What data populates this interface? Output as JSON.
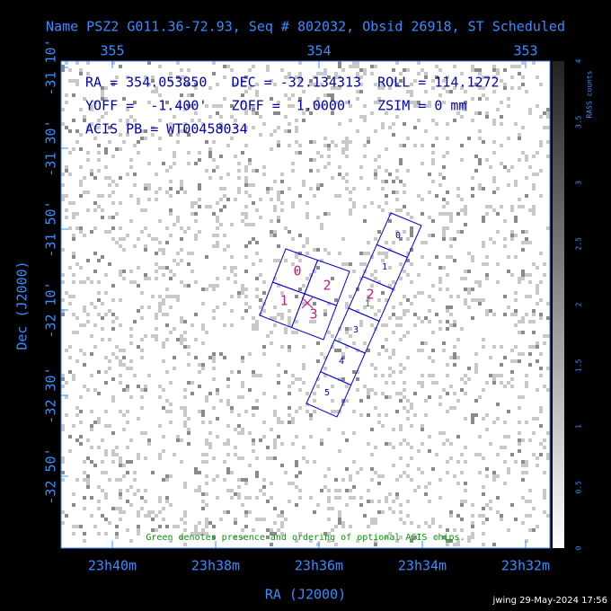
{
  "header": {
    "title": "Name PSZ2 G011.36-72.93, Seq # 802032, Obsid 26918, ST Scheduled"
  },
  "axes": {
    "top_labels": [
      "355",
      "354",
      "353"
    ],
    "left_labels": [
      "-31 10'",
      "-31 30'",
      "-31 50'",
      "-32 10'",
      "-32 30'",
      "-32 50'"
    ],
    "bottom_labels": [
      "23h40m",
      "23h38m",
      "23h36m",
      "23h34m",
      "23h32m"
    ],
    "x_title": "RA (J2000)",
    "y_title": "Dec (J2000)"
  },
  "info": [
    "RA = 354.053850   DEC = -32.134313  ROLL = 114.1272",
    "YOFF =  -1.400'   ZOFF =  1.0000'   ZSIM = 0 mm",
    "ACIS PB = WT00458034"
  ],
  "chips": {
    "acis_i": [
      "0",
      "2",
      "1",
      "3"
    ],
    "acis_s": [
      "0",
      "1",
      "2",
      "3",
      "4",
      "5"
    ],
    "optional": "1"
  },
  "colorbar": {
    "title": "RASS counts",
    "ticks": [
      "0",
      "0.5",
      "1",
      "1.5",
      "2",
      "2.5",
      "3",
      "3.5",
      "4"
    ]
  },
  "note": "Green denotes presence and ordering of optional ACIS chips.",
  "credit": "jwing 29-May-2024 17:56"
}
